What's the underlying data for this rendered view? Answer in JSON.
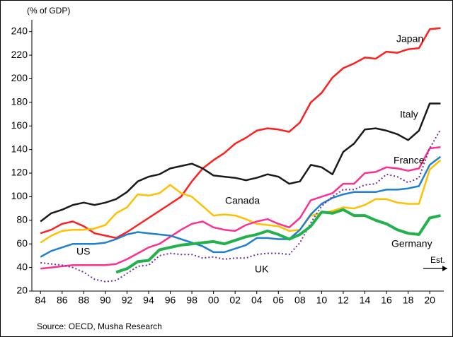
{
  "chart_data": {
    "type": "line",
    "y_label": "(% of GDP)",
    "source": "Source: OECD,  Musha Research",
    "annotation": "Est.",
    "x": [
      1984,
      1985,
      1986,
      1987,
      1988,
      1989,
      1990,
      1991,
      1992,
      1993,
      1994,
      1995,
      1996,
      1997,
      1998,
      1999,
      2000,
      2001,
      2002,
      2003,
      2004,
      2005,
      2006,
      2007,
      2008,
      2009,
      2010,
      2011,
      2012,
      2013,
      2014,
      2015,
      2016,
      2017,
      2018,
      2019,
      2020,
      2021
    ],
    "series": [
      {
        "name": "Japan",
        "color": "#ff1f1f",
        "style": "solid",
        "values": [
          69,
          72,
          77,
          79,
          75,
          69,
          67,
          65,
          70,
          76,
          82,
          88,
          94,
          100,
          113,
          124,
          131,
          137,
          145,
          150,
          156,
          158,
          157,
          155,
          163,
          180,
          188,
          201,
          209,
          213,
          218,
          217,
          223,
          222,
          225,
          226,
          242,
          243
        ]
      },
      {
        "name": "Italy",
        "color": "#1a1a1a",
        "style": "solid",
        "values": [
          79,
          86,
          89,
          93,
          95,
          93,
          95,
          98,
          104,
          113,
          117,
          119,
          124,
          126,
          128,
          124,
          118,
          117,
          116,
          114,
          116,
          119,
          117,
          111,
          113,
          127,
          125,
          119,
          138,
          145,
          157,
          158,
          156,
          153,
          148,
          156,
          179,
          179
        ]
      },
      {
        "name": "Canada",
        "color": "#ffc000",
        "style": "solid",
        "values": [
          61,
          67,
          71,
          72,
          72,
          73,
          76,
          86,
          91,
          102,
          101,
          103,
          110,
          103,
          100,
          92,
          84,
          85,
          84,
          81,
          77,
          76,
          75,
          71,
          72,
          84,
          86,
          88,
          91,
          90,
          93,
          98,
          98,
          95,
          94,
          94,
          123,
          131
        ]
      },
      {
        "name": "France",
        "color": "#ff2f8e",
        "style": "solid",
        "values": [
          39,
          40,
          41,
          42,
          42,
          42,
          42,
          43,
          47,
          52,
          57,
          60,
          66,
          72,
          77,
          79,
          74,
          72,
          71,
          76,
          79,
          81,
          77,
          74,
          82,
          97,
          100,
          103,
          111,
          111,
          120,
          121,
          125,
          124,
          122,
          124,
          141,
          142
        ]
      },
      {
        "name": "US",
        "color": "#1f7fd0",
        "style": "solid",
        "values": [
          49,
          54,
          57,
          60,
          60,
          60,
          61,
          64,
          68,
          70,
          69,
          68,
          67,
          64,
          61,
          58,
          53,
          53,
          56,
          59,
          65,
          65,
          64,
          64,
          72,
          85,
          94,
          99,
          102,
          104,
          104,
          104,
          106,
          106,
          107,
          109,
          127,
          134
        ]
      },
      {
        "name": "UK",
        "color": "#7030a0",
        "style": "dotted",
        "values": [
          44,
          43,
          42,
          40,
          36,
          30,
          28,
          29,
          35,
          41,
          42,
          50,
          52,
          51,
          51,
          48,
          49,
          47,
          48,
          48,
          51,
          52,
          52,
          51,
          61,
          78,
          92,
          100,
          106,
          106,
          110,
          111,
          119,
          117,
          112,
          116,
          141,
          157
        ]
      },
      {
        "name": "Germany",
        "color": "#22b14c",
        "style": "thick",
        "values": [
          null,
          null,
          null,
          null,
          null,
          null,
          null,
          36,
          39,
          45,
          46,
          55,
          57,
          59,
          60,
          61,
          62,
          60,
          63,
          66,
          68,
          71,
          68,
          64,
          68,
          75,
          87,
          86,
          89,
          84,
          84,
          80,
          77,
          72,
          69,
          68,
          82,
          84
        ]
      }
    ],
    "xlim": [
      1983.2,
      2021.3
    ],
    "xticks": [
      {
        "value": 1984,
        "label": "84"
      },
      {
        "value": 1986,
        "label": "86"
      },
      {
        "value": 1988,
        "label": "88"
      },
      {
        "value": 1990,
        "label": "90"
      },
      {
        "value": 1992,
        "label": "92"
      },
      {
        "value": 1994,
        "label": "94"
      },
      {
        "value": 1996,
        "label": "96"
      },
      {
        "value": 1998,
        "label": "98"
      },
      {
        "value": 2000,
        "label": "00"
      },
      {
        "value": 2002,
        "label": "02"
      },
      {
        "value": 2004,
        "label": "04"
      },
      {
        "value": 2006,
        "label": "06"
      },
      {
        "value": 2008,
        "label": "08"
      },
      {
        "value": 2010,
        "label": "10"
      },
      {
        "value": 2012,
        "label": "12"
      },
      {
        "value": 2014,
        "label": "14"
      },
      {
        "value": 2016,
        "label": "16"
      },
      {
        "value": 2018,
        "label": "18"
      },
      {
        "value": 2020,
        "label": "20"
      }
    ],
    "ylim": [
      20,
      250
    ],
    "yticks": [
      20,
      40,
      60,
      80,
      100,
      120,
      140,
      160,
      180,
      200,
      220,
      240
    ],
    "grid": false
  }
}
